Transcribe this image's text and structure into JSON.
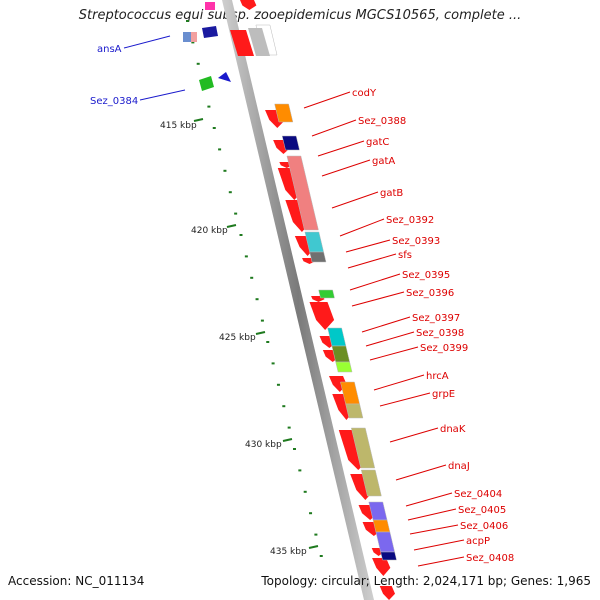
{
  "title": "Streptococcus equi subsp. zooepidemicus MGCS10565, complete ...",
  "footer": {
    "accession": "Accession: NC_011134",
    "topology": "Topology: circular; Length: 2,024,171 bp; Genes: 1,965"
  },
  "colors": {
    "forward_gene": "#ff1a1a",
    "highlight_label": "#1a1acc",
    "backbone": "#8a8a8a",
    "tick_mark": "#1f7a1f"
  },
  "scale_ticks": [
    {
      "label": "415 kbp"
    },
    {
      "label": "420 kbp"
    },
    {
      "label": "425 kbp"
    },
    {
      "label": "430 kbp"
    },
    {
      "label": "435 kbp"
    }
  ],
  "gene_labels": [
    {
      "name": "ansA",
      "color": "#1a1acc"
    },
    {
      "name": "Sez_0384",
      "color": "#1a1acc"
    },
    {
      "name": "codY",
      "color": "#dd0000"
    },
    {
      "name": "Sez_0388",
      "color": "#dd0000"
    },
    {
      "name": "gatC",
      "color": "#dd0000"
    },
    {
      "name": "gatA",
      "color": "#dd0000"
    },
    {
      "name": "gatB",
      "color": "#dd0000"
    },
    {
      "name": "Sez_0392",
      "color": "#dd0000"
    },
    {
      "name": "Sez_0393",
      "color": "#dd0000"
    },
    {
      "name": "sfs",
      "color": "#dd0000"
    },
    {
      "name": "Sez_0395",
      "color": "#dd0000"
    },
    {
      "name": "Sez_0396",
      "color": "#dd0000"
    },
    {
      "name": "Sez_0397",
      "color": "#dd0000"
    },
    {
      "name": "Sez_0398",
      "color": "#dd0000"
    },
    {
      "name": "Sez_0399",
      "color": "#dd0000"
    },
    {
      "name": "hrcA",
      "color": "#dd0000"
    },
    {
      "name": "grpE",
      "color": "#dd0000"
    },
    {
      "name": "dnaK",
      "color": "#dd0000"
    },
    {
      "name": "dnaJ",
      "color": "#dd0000"
    },
    {
      "name": "Sez_0404",
      "color": "#dd0000"
    },
    {
      "name": "Sez_0405",
      "color": "#dd0000"
    },
    {
      "name": "Sez_0406",
      "color": "#dd0000"
    },
    {
      "name": "acpP",
      "color": "#dd0000"
    },
    {
      "name": "Sez_0408",
      "color": "#dd0000"
    }
  ],
  "feature_bars": [
    {
      "color": "#ffffff"
    },
    {
      "color": "#ff8c00"
    },
    {
      "color": "#0a0a80"
    },
    {
      "color": "#f08080"
    },
    {
      "color": "#40c8d0"
    },
    {
      "color": "#707070"
    },
    {
      "color": "#33cc33"
    },
    {
      "color": "#00c8c8"
    },
    {
      "color": "#6b8e23"
    },
    {
      "color": "#99ff33"
    },
    {
      "color": "#ff8c00"
    },
    {
      "color": "#bdb76b"
    },
    {
      "color": "#bdb76b"
    },
    {
      "color": "#bdb76b"
    },
    {
      "color": "#7b68ee"
    },
    {
      "color": "#ff8c00"
    },
    {
      "color": "#7b68ee"
    },
    {
      "color": "#0a0a80"
    }
  ]
}
